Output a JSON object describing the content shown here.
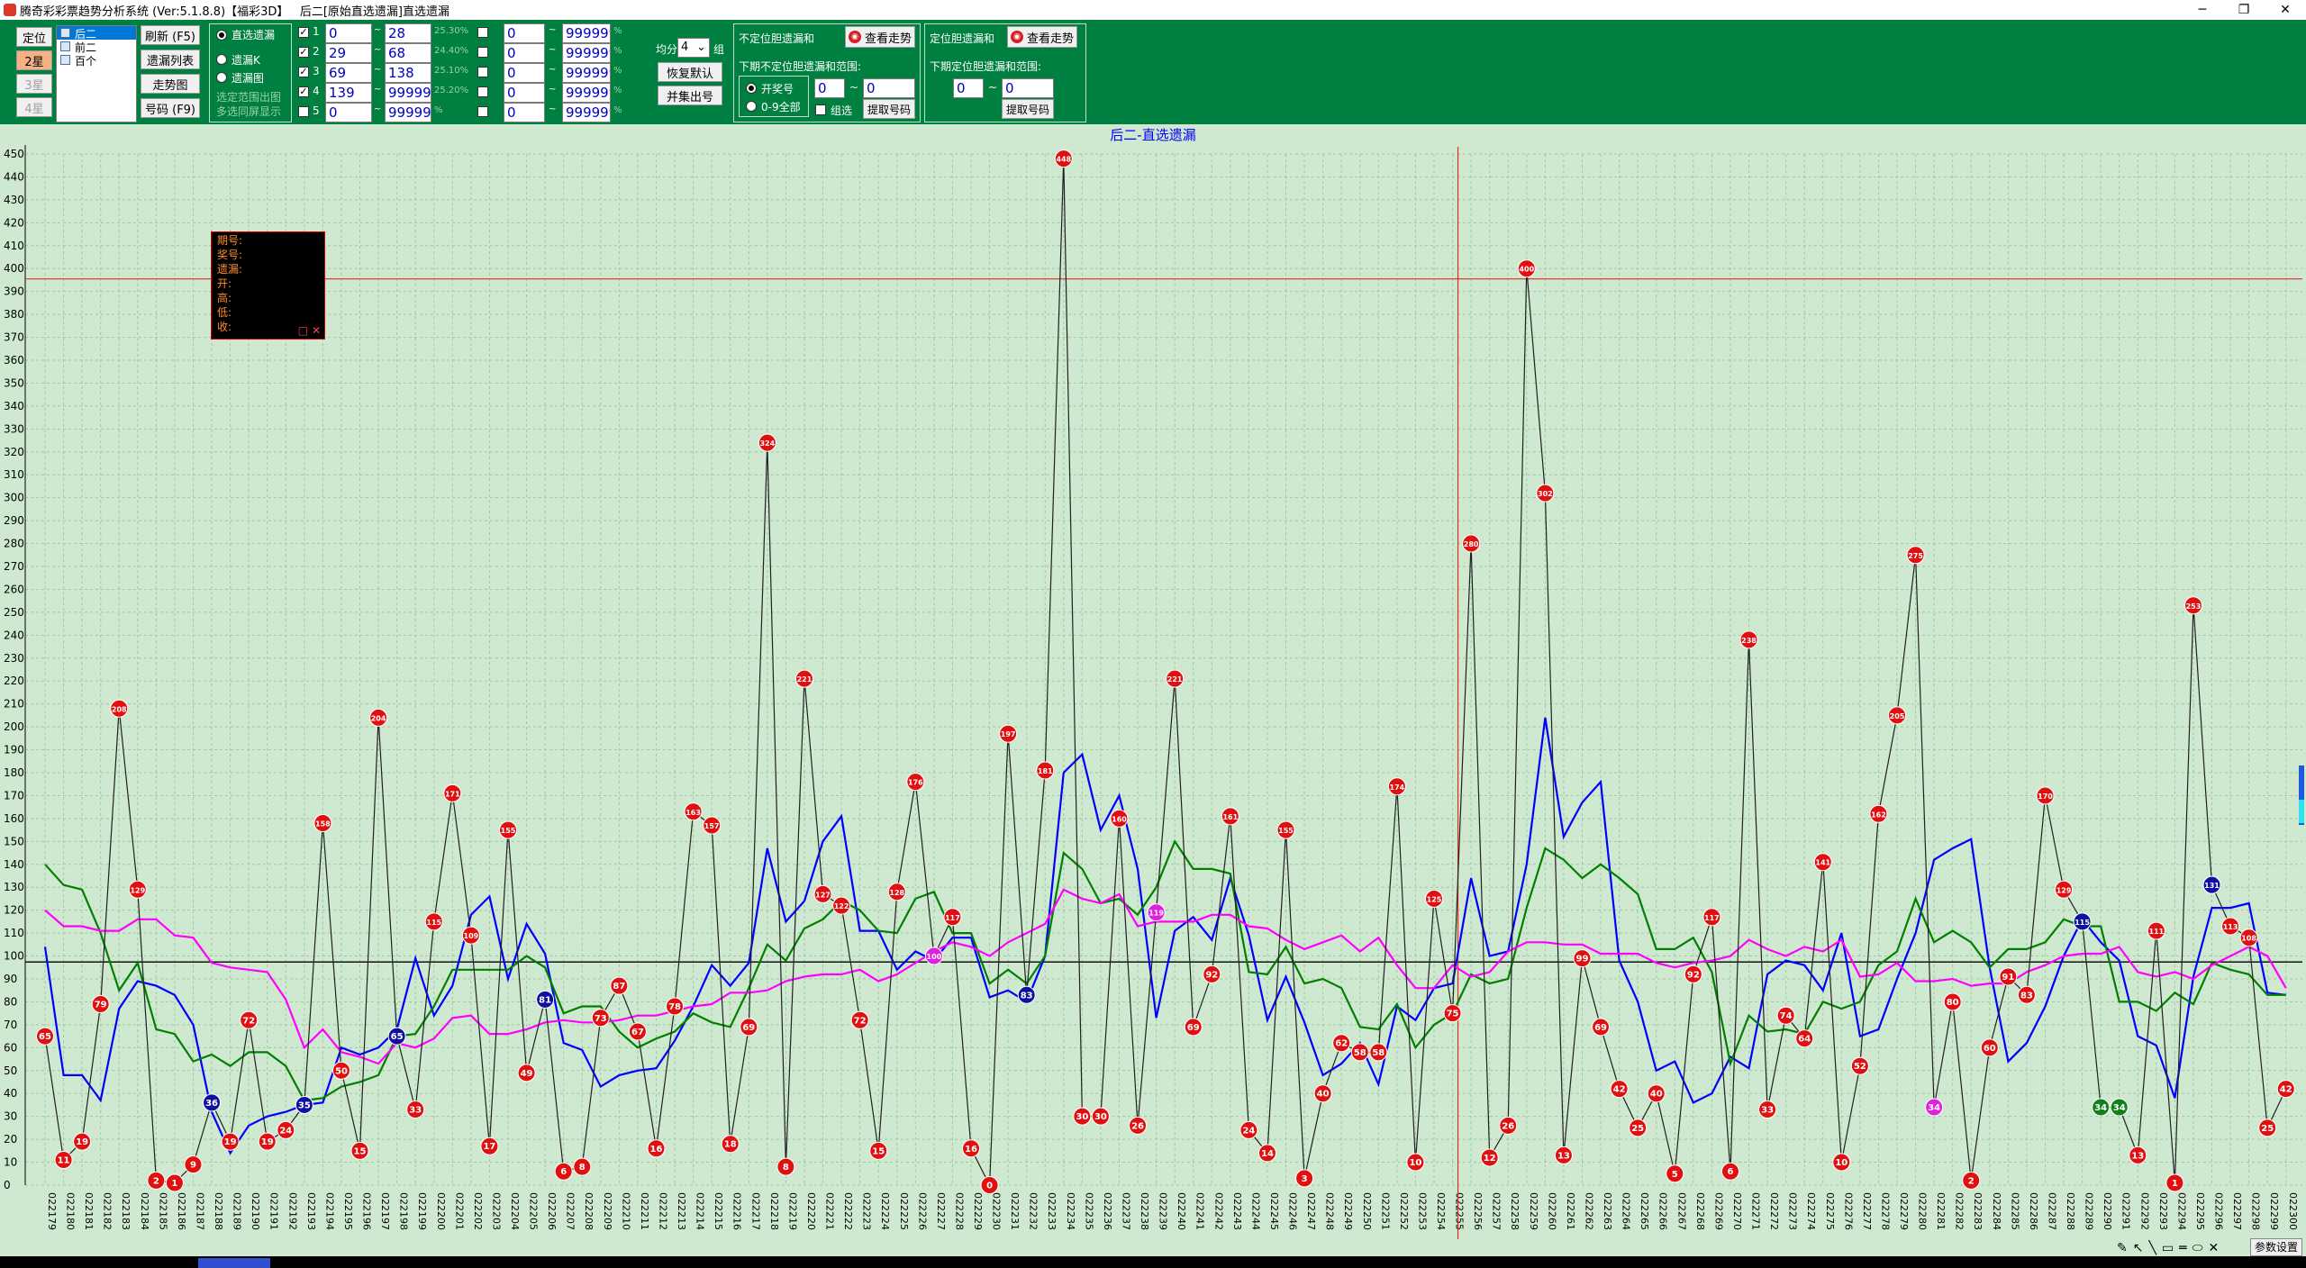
{
  "window": {
    "title": "腾奇彩彩票趋势分析系统 (Ver:5.1.8.8)【福彩3D】   后二[原始直选遗漏]直选遗漏",
    "controls": [
      "─",
      "❐",
      "✕"
    ]
  },
  "left_buttons": [
    {
      "label": "定位",
      "state": "normal"
    },
    {
      "label": "2星",
      "state": "selected"
    },
    {
      "label": "3星",
      "state": "disabled"
    },
    {
      "label": "4星",
      "state": "disabled"
    }
  ],
  "pos_list": {
    "items": [
      "后二",
      "前二",
      "百个"
    ],
    "selected": 0
  },
  "actions": [
    "刷新 (F5)",
    "遗漏列表",
    "走势图",
    "号码 (F9)"
  ],
  "modes": {
    "options": [
      "直选遗漏",
      "遗漏K",
      "遗漏图"
    ],
    "selected": 0,
    "extra": [
      "选定范围出图",
      "多选同屏显示"
    ]
  },
  "filters": [
    {
      "checked": true,
      "index": "1",
      "from": "0",
      "to": "28",
      "pct": "25.30%",
      "checked2": false,
      "from2": "0",
      "to2": "999999",
      "pct2": "%"
    },
    {
      "checked": true,
      "index": "2",
      "from": "29",
      "to": "68",
      "pct": "24.40%",
      "checked2": false,
      "from2": "0",
      "to2": "999999",
      "pct2": "%"
    },
    {
      "checked": true,
      "index": "3",
      "from": "69",
      "to": "138",
      "pct": "25.10%",
      "checked2": false,
      "from2": "0",
      "to2": "999999",
      "pct2": "%"
    },
    {
      "checked": true,
      "index": "4",
      "from": "139",
      "to": "999999",
      "pct": "25.20%",
      "checked2": false,
      "from2": "0",
      "to2": "999999",
      "pct2": "%"
    },
    {
      "checked": false,
      "index": "5",
      "from": "0",
      "to": "999999",
      "pct": "%",
      "checked2": false,
      "from2": "0",
      "to2": "999999",
      "pct2": "%"
    }
  ],
  "split": {
    "label": "均分",
    "value": "4",
    "unit": "组"
  },
  "split_buttons": [
    "恢复默认",
    "并集出号"
  ],
  "unpos": {
    "title": "不定位胆遗漏和",
    "view_label": "查看走势",
    "range_title": "下期不定位胆遗漏和范围:",
    "radio_on": "开奖号",
    "radio_off": "0-9全部",
    "from": "0",
    "to": "0",
    "combo_label": "组选",
    "fetch_label": "提取号码"
  },
  "pos": {
    "title": "定位胆遗漏和",
    "view_label": "查看走势",
    "range_title": "下期定位胆遗漏和范围:",
    "from": "0",
    "to": "0",
    "fetch_label": "提取号码"
  },
  "info_box": {
    "rows": [
      "期号:",
      "奖号:",
      "遗漏:",
      "开:",
      "高:",
      "低:",
      "收:"
    ],
    "ctrl": [
      "□",
      "✕"
    ]
  },
  "param_button": "参数设置",
  "chart_data": {
    "type": "line",
    "title": "后二-直选遗漏",
    "ylim": [
      0,
      450
    ],
    "yticks": [
      0,
      10,
      20,
      30,
      40,
      50,
      60,
      70,
      80,
      90,
      100,
      110,
      120,
      130,
      140,
      150,
      160,
      170,
      180,
      190,
      200,
      210,
      220,
      230,
      240,
      250,
      260,
      270,
      280,
      290,
      300,
      310,
      320,
      330,
      340,
      350,
      360,
      370,
      380,
      390,
      400,
      410,
      420,
      430,
      440,
      450
    ],
    "x": [
      "022179",
      "022180",
      "022181",
      "022182",
      "022183",
      "022184",
      "022185",
      "022186",
      "022187",
      "022188",
      "022189",
      "022190",
      "022191",
      "022192",
      "022193",
      "022194",
      "022195",
      "022196",
      "022197",
      "022198",
      "022199",
      "022200",
      "022201",
      "022202",
      "022203",
      "022204",
      "022205",
      "022206",
      "022207",
      "022208",
      "022209",
      "022210",
      "022211",
      "022212",
      "022213",
      "022214",
      "022215",
      "022216",
      "022217",
      "022218",
      "022219",
      "022220",
      "022221",
      "022222",
      "022223",
      "022224",
      "022225",
      "022226",
      "022227",
      "022228",
      "022229",
      "022230",
      "022231",
      "022232",
      "022233",
      "022234",
      "022235",
      "022236",
      "022237",
      "022238",
      "022239",
      "022240",
      "022241",
      "022242",
      "022243",
      "022244",
      "022245",
      "022246",
      "022247",
      "022248",
      "022249",
      "022250",
      "022251",
      "022252",
      "022253",
      "022254",
      "022255",
      "022256",
      "022257",
      "022258",
      "022259",
      "022260",
      "022261",
      "022262",
      "022263",
      "022264",
      "022265",
      "022266",
      "022267",
      "022268",
      "022269",
      "022270",
      "022271",
      "022272",
      "022273",
      "022274",
      "022275",
      "022276",
      "022277",
      "022278",
      "022279",
      "022280",
      "022281",
      "022282",
      "022283",
      "022284",
      "022285",
      "022286",
      "022287",
      "022288",
      "022289",
      "022290",
      "022291",
      "022292",
      "022293",
      "022294",
      "022295",
      "022296",
      "022297",
      "022298",
      "022299",
      "022300"
    ],
    "values": [
      65,
      11,
      19,
      79,
      208,
      129,
      2,
      1,
      9,
      36,
      19,
      72,
      19,
      24,
      35,
      158,
      50,
      15,
      204,
      65,
      33,
      115,
      171,
      109,
      17,
      155,
      49,
      81,
      6,
      8,
      73,
      87,
      67,
      16,
      78,
      163,
      157,
      18,
      69,
      324,
      8,
      221,
      127,
      122,
      72,
      15,
      128,
      176,
      100,
      117,
      16,
      0,
      197,
      83,
      181,
      448,
      30,
      30,
      160,
      26,
      119,
      221,
      69,
      92,
      161,
      24,
      14,
      155,
      3,
      40,
      62,
      58,
      58,
      174,
      10,
      125,
      75,
      280,
      12,
      26,
      400,
      302,
      13,
      99,
      69,
      42,
      25,
      40,
      5,
      92,
      117,
      6,
      238,
      33,
      74,
      64,
      141,
      10,
      52,
      162,
      205,
      275,
      34,
      80,
      2,
      60,
      91,
      83,
      170,
      129,
      115,
      34,
      34,
      13,
      111,
      1,
      253,
      131,
      113,
      108,
      25,
      42
    ],
    "marker_colors": {
      "red": "#e01010",
      "magenta": "#e020e0",
      "navy": "#1010a0",
      "green": "#10801a"
    },
    "special_markers": [
      {
        "index": 9,
        "color": "navy"
      },
      {
        "index": 14,
        "color": "navy"
      },
      {
        "index": 19,
        "color": "navy"
      },
      {
        "index": 27,
        "color": "navy"
      },
      {
        "index": 48,
        "color": "magenta"
      },
      {
        "index": 53,
        "color": "navy"
      },
      {
        "index": 60,
        "color": "magenta"
      },
      {
        "index": 102,
        "color": "magenta"
      },
      {
        "index": 110,
        "color": "navy"
      },
      {
        "index": 111,
        "color": "green"
      },
      {
        "index": 112,
        "color": "green"
      },
      {
        "index": 117,
        "color": "navy"
      }
    ],
    "series": [
      {
        "color": "#0000ff",
        "values": [
          104,
          48,
          48,
          37,
          77,
          89,
          87,
          83,
          70,
          32,
          14,
          26,
          30,
          32,
          35,
          36,
          60,
          57,
          60,
          68,
          99,
          74,
          87,
          118,
          126,
          90,
          114,
          101,
          62,
          59,
          43,
          48,
          50,
          51,
          63,
          78,
          96,
          87,
          97,
          147,
          115,
          124,
          150,
          161,
          111,
          111,
          94,
          102,
          98,
          108,
          108,
          82,
          85,
          80,
          100,
          180,
          188,
          155,
          170,
          138,
          73,
          111,
          117,
          107,
          134,
          109,
          72,
          91,
          71,
          48,
          53,
          62,
          44,
          78,
          72,
          86,
          88,
          134,
          100,
          102,
          140,
          204,
          152,
          167,
          176,
          98,
          80,
          50,
          54,
          36,
          40,
          56,
          51,
          92,
          98,
          96,
          85,
          110,
          65,
          68,
          90,
          110,
          142,
          147,
          151,
          95,
          54,
          62,
          78,
          100,
          116,
          106,
          98,
          65,
          61,
          38,
          91,
          121,
          121,
          123,
          84,
          83
        ]
      },
      {
        "color": "#008000",
        "values": [
          140,
          131,
          129,
          110,
          85,
          97,
          68,
          66,
          54,
          57,
          52,
          58,
          58,
          52,
          37,
          38,
          43,
          45,
          48,
          65,
          66,
          78,
          94,
          94,
          94,
          94,
          100,
          95,
          75,
          78,
          78,
          67,
          60,
          64,
          67,
          75,
          71,
          69,
          86,
          105,
          98,
          112,
          116,
          124,
          120,
          111,
          110,
          125,
          128,
          110,
          110,
          88,
          94,
          88,
          100,
          145,
          138,
          123,
          125,
          118,
          130,
          150,
          138,
          138,
          136,
          93,
          92,
          104,
          88,
          90,
          86,
          69,
          68,
          79,
          60,
          70,
          75,
          92,
          88,
          90,
          121,
          147,
          142,
          134,
          140,
          134,
          127,
          103,
          103,
          108,
          93,
          53,
          74,
          67,
          68,
          66,
          80,
          77,
          80,
          96,
          102,
          125,
          106,
          111,
          106,
          95,
          103,
          103,
          106,
          116,
          113,
          113,
          80,
          80,
          76,
          84,
          79,
          97,
          94,
          92,
          83,
          83
        ]
      },
      {
        "color": "#ff00ff",
        "values": [
          120,
          113,
          113,
          111,
          111,
          116,
          116,
          109,
          108,
          97,
          95,
          94,
          93,
          81,
          60,
          68,
          58,
          56,
          53,
          62,
          60,
          64,
          73,
          74,
          66,
          66,
          68,
          71,
          72,
          71,
          71,
          72,
          74,
          74,
          76,
          78,
          79,
          84,
          84,
          85,
          89,
          91,
          92,
          92,
          94,
          89,
          92,
          97,
          102,
          106,
          104,
          100,
          106,
          110,
          114,
          129,
          125,
          123,
          127,
          113,
          115,
          115,
          115,
          118,
          118,
          113,
          112,
          107,
          103,
          106,
          109,
          102,
          108,
          96,
          86,
          86,
          96,
          91,
          93,
          102,
          106,
          106,
          105,
          105,
          101,
          101,
          101,
          97,
          95,
          97,
          98,
          100,
          107,
          103,
          100,
          104,
          102,
          107,
          91,
          92,
          97,
          89,
          89,
          90,
          87,
          88,
          88,
          93,
          96,
          100,
          101,
          101,
          104,
          93,
          91,
          93,
          90,
          96,
          100,
          104,
          100,
          86
        ]
      }
    ],
    "hline": 97.4,
    "cursor": {
      "x_index": 76,
      "y": 395.5
    }
  }
}
